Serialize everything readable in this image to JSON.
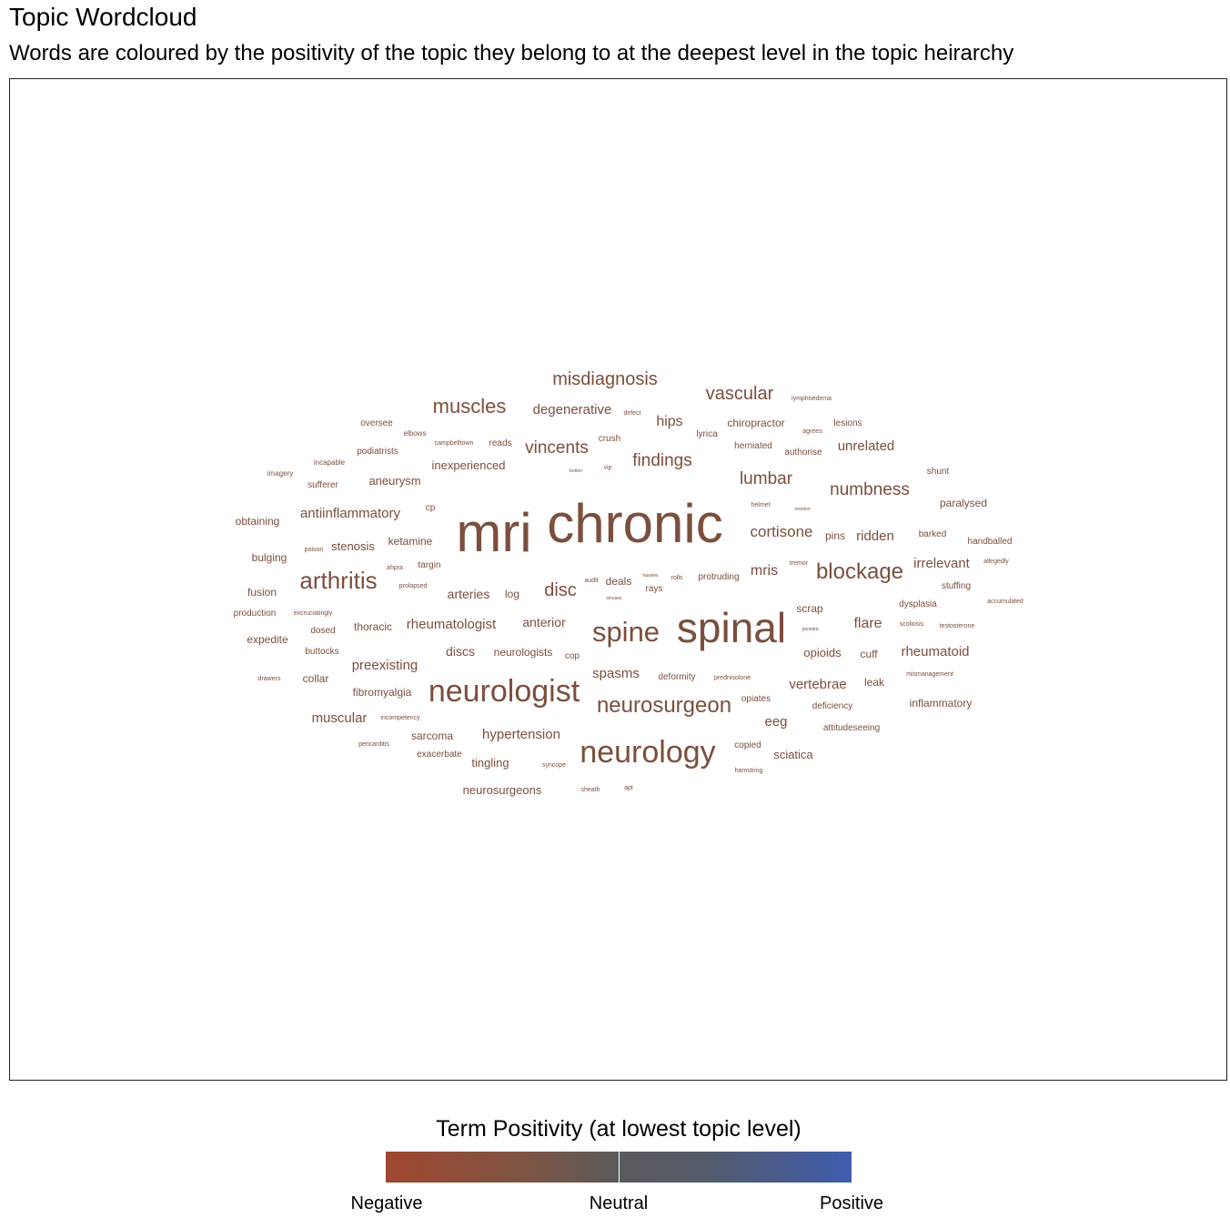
{
  "header": {
    "title": "Topic Wordcloud",
    "subtitle": "Words are coloured by the positivity of the topic they belong to at the deepest level in the topic heirarchy"
  },
  "legend": {
    "title": "Term Positivity (at lowest topic level)",
    "labels": [
      "Negative",
      "Neutral",
      "Positive"
    ],
    "colors": {
      "negative": "#9f4730",
      "neutral": "#595a5c",
      "positive": "#3f5cae"
    }
  },
  "chart_data": {
    "type": "wordcloud",
    "title": "Topic Wordcloud",
    "subtitle": "Words are coloured by the positivity of the topic they belong to at the deepest level in the topic heirarchy",
    "word_color": "#7b4f3d",
    "words": [
      {
        "w": "chronic",
        "s": 60
      },
      {
        "w": "mri",
        "s": 60
      },
      {
        "w": "spinal",
        "s": 46
      },
      {
        "w": "neurologist",
        "s": 34
      },
      {
        "w": "neurology",
        "s": 34
      },
      {
        "w": "spine",
        "s": 31
      },
      {
        "w": "arthritis",
        "s": 26
      },
      {
        "w": "neurosurgeon",
        "s": 24
      },
      {
        "w": "blockage",
        "s": 24
      },
      {
        "w": "muscles",
        "s": 22
      },
      {
        "w": "misdiagnosis",
        "s": 20
      },
      {
        "w": "vascular",
        "s": 20
      },
      {
        "w": "disc",
        "s": 20
      },
      {
        "w": "findings",
        "s": 19
      },
      {
        "w": "vincents",
        "s": 19
      },
      {
        "w": "numbness",
        "s": 19
      },
      {
        "w": "lumbar",
        "s": 19
      },
      {
        "w": "cortisone",
        "s": 17
      },
      {
        "w": "degenerative",
        "s": 15
      },
      {
        "w": "hips",
        "s": 16
      },
      {
        "w": "unrelated",
        "s": 15
      },
      {
        "w": "antiinflammatory",
        "s": 15
      },
      {
        "w": "rheumatologist",
        "s": 15
      },
      {
        "w": "mris",
        "s": 16
      },
      {
        "w": "flare",
        "s": 16
      },
      {
        "w": "rheumatoid",
        "s": 15
      },
      {
        "w": "spasms",
        "s": 15
      },
      {
        "w": "preexisting",
        "s": 15
      },
      {
        "w": "irrelevant",
        "s": 15
      },
      {
        "w": "muscular",
        "s": 15
      },
      {
        "w": "arteries",
        "s": 14
      },
      {
        "w": "hypertension",
        "s": 15
      },
      {
        "w": "vertebrae",
        "s": 15
      },
      {
        "w": "ridden",
        "s": 15
      },
      {
        "w": "eeg",
        "s": 15
      },
      {
        "w": "anterior",
        "s": 14
      },
      {
        "w": "discs",
        "s": 14
      },
      {
        "w": "stenosis",
        "s": 13
      },
      {
        "w": "aneurysm",
        "s": 13
      },
      {
        "w": "inexperienced",
        "s": 13
      },
      {
        "w": "chiropractor",
        "s": 12
      },
      {
        "w": "inflammatory",
        "s": 12
      },
      {
        "w": "fibromyalgia",
        "s": 12
      },
      {
        "w": "tingling",
        "s": 13
      },
      {
        "w": "neurosurgeons",
        "s": 13
      },
      {
        "w": "sciatica",
        "s": 13
      },
      {
        "w": "opioids",
        "s": 13
      },
      {
        "w": "obtaining",
        "s": 12
      },
      {
        "w": "bulging",
        "s": 12
      },
      {
        "w": "fusion",
        "s": 12
      },
      {
        "w": "expedite",
        "s": 12
      },
      {
        "w": "ketamine",
        "s": 12
      },
      {
        "w": "sarcoma",
        "s": 12
      },
      {
        "w": "collar",
        "s": 12
      },
      {
        "w": "thoracic",
        "s": 12
      },
      {
        "w": "neurologists",
        "s": 12
      },
      {
        "w": "leak",
        "s": 12
      },
      {
        "w": "cuff",
        "s": 12
      },
      {
        "w": "pins",
        "s": 12
      },
      {
        "w": "deals",
        "s": 12
      },
      {
        "w": "scrap",
        "s": 12
      },
      {
        "w": "log",
        "s": 12
      },
      {
        "w": "paralysed",
        "s": 12
      },
      {
        "w": "podiatrists",
        "s": 10
      },
      {
        "w": "sufferer",
        "s": 10
      },
      {
        "w": "oversee",
        "s": 10
      },
      {
        "w": "reads",
        "s": 10
      },
      {
        "w": "crush",
        "s": 10
      },
      {
        "w": "lyrica",
        "s": 10
      },
      {
        "w": "herniated",
        "s": 10
      },
      {
        "w": "authorise",
        "s": 10
      },
      {
        "w": "lesions",
        "s": 10
      },
      {
        "w": "shunt",
        "s": 10
      },
      {
        "w": "barked",
        "s": 10
      },
      {
        "w": "handballed",
        "s": 10
      },
      {
        "w": "stuffing",
        "s": 10
      },
      {
        "w": "dysplasia",
        "s": 10
      },
      {
        "w": "targin",
        "s": 10
      },
      {
        "w": "rays",
        "s": 10
      },
      {
        "w": "protruding",
        "s": 10
      },
      {
        "w": "deformity",
        "s": 10
      },
      {
        "w": "opiates",
        "s": 10
      },
      {
        "w": "deficiency",
        "s": 10
      },
      {
        "w": "attitudeseeing",
        "s": 10
      },
      {
        "w": "copied",
        "s": 10
      },
      {
        "w": "exacerbate",
        "s": 10
      },
      {
        "w": "dosed",
        "s": 10
      },
      {
        "w": "buttocks",
        "s": 10
      },
      {
        "w": "production",
        "s": 10
      },
      {
        "w": "cop",
        "s": 10
      },
      {
        "w": "cp",
        "s": 10
      },
      {
        "w": "imagery",
        "s": 8
      },
      {
        "w": "incapable",
        "s": 8
      },
      {
        "w": "elbows",
        "s": 8
      },
      {
        "w": "campbelltown",
        "s": 7
      },
      {
        "w": "defect",
        "s": 7
      },
      {
        "w": "vip",
        "s": 7
      },
      {
        "w": "lymphoedema",
        "s": 7
      },
      {
        "w": "agrees",
        "s": 7
      },
      {
        "w": "helmet",
        "s": 7
      },
      {
        "w": "poison",
        "s": 7
      },
      {
        "w": "ahpra",
        "s": 7
      },
      {
        "w": "prolapsed",
        "s": 7
      },
      {
        "w": "audit",
        "s": 7
      },
      {
        "w": "rolls",
        "s": 7
      },
      {
        "w": "tremor",
        "s": 7
      },
      {
        "w": "allegedly",
        "s": 7
      },
      {
        "w": "accumulated",
        "s": 7
      },
      {
        "w": "scoliosis",
        "s": 7
      },
      {
        "w": "testosterone",
        "s": 7
      },
      {
        "w": "mismanagement",
        "s": 7
      },
      {
        "w": "prednisolone",
        "s": 7
      },
      {
        "w": "hamstring",
        "s": 7
      },
      {
        "w": "syncope",
        "s": 7
      },
      {
        "w": "sheath",
        "s": 7
      },
      {
        "w": "apt",
        "s": 7
      },
      {
        "w": "pericarditis",
        "s": 7
      },
      {
        "w": "incompetency",
        "s": 7
      },
      {
        "w": "drawers",
        "s": 7
      },
      {
        "w": "excruciatingly",
        "s": 7
      },
      {
        "w": "botton",
        "s": 5
      },
      {
        "w": "hassles",
        "s": 5
      },
      {
        "w": "sinuses",
        "s": 5
      },
      {
        "w": "psoriatic",
        "s": 5
      },
      {
        "w": "revision",
        "s": 5
      }
    ]
  }
}
